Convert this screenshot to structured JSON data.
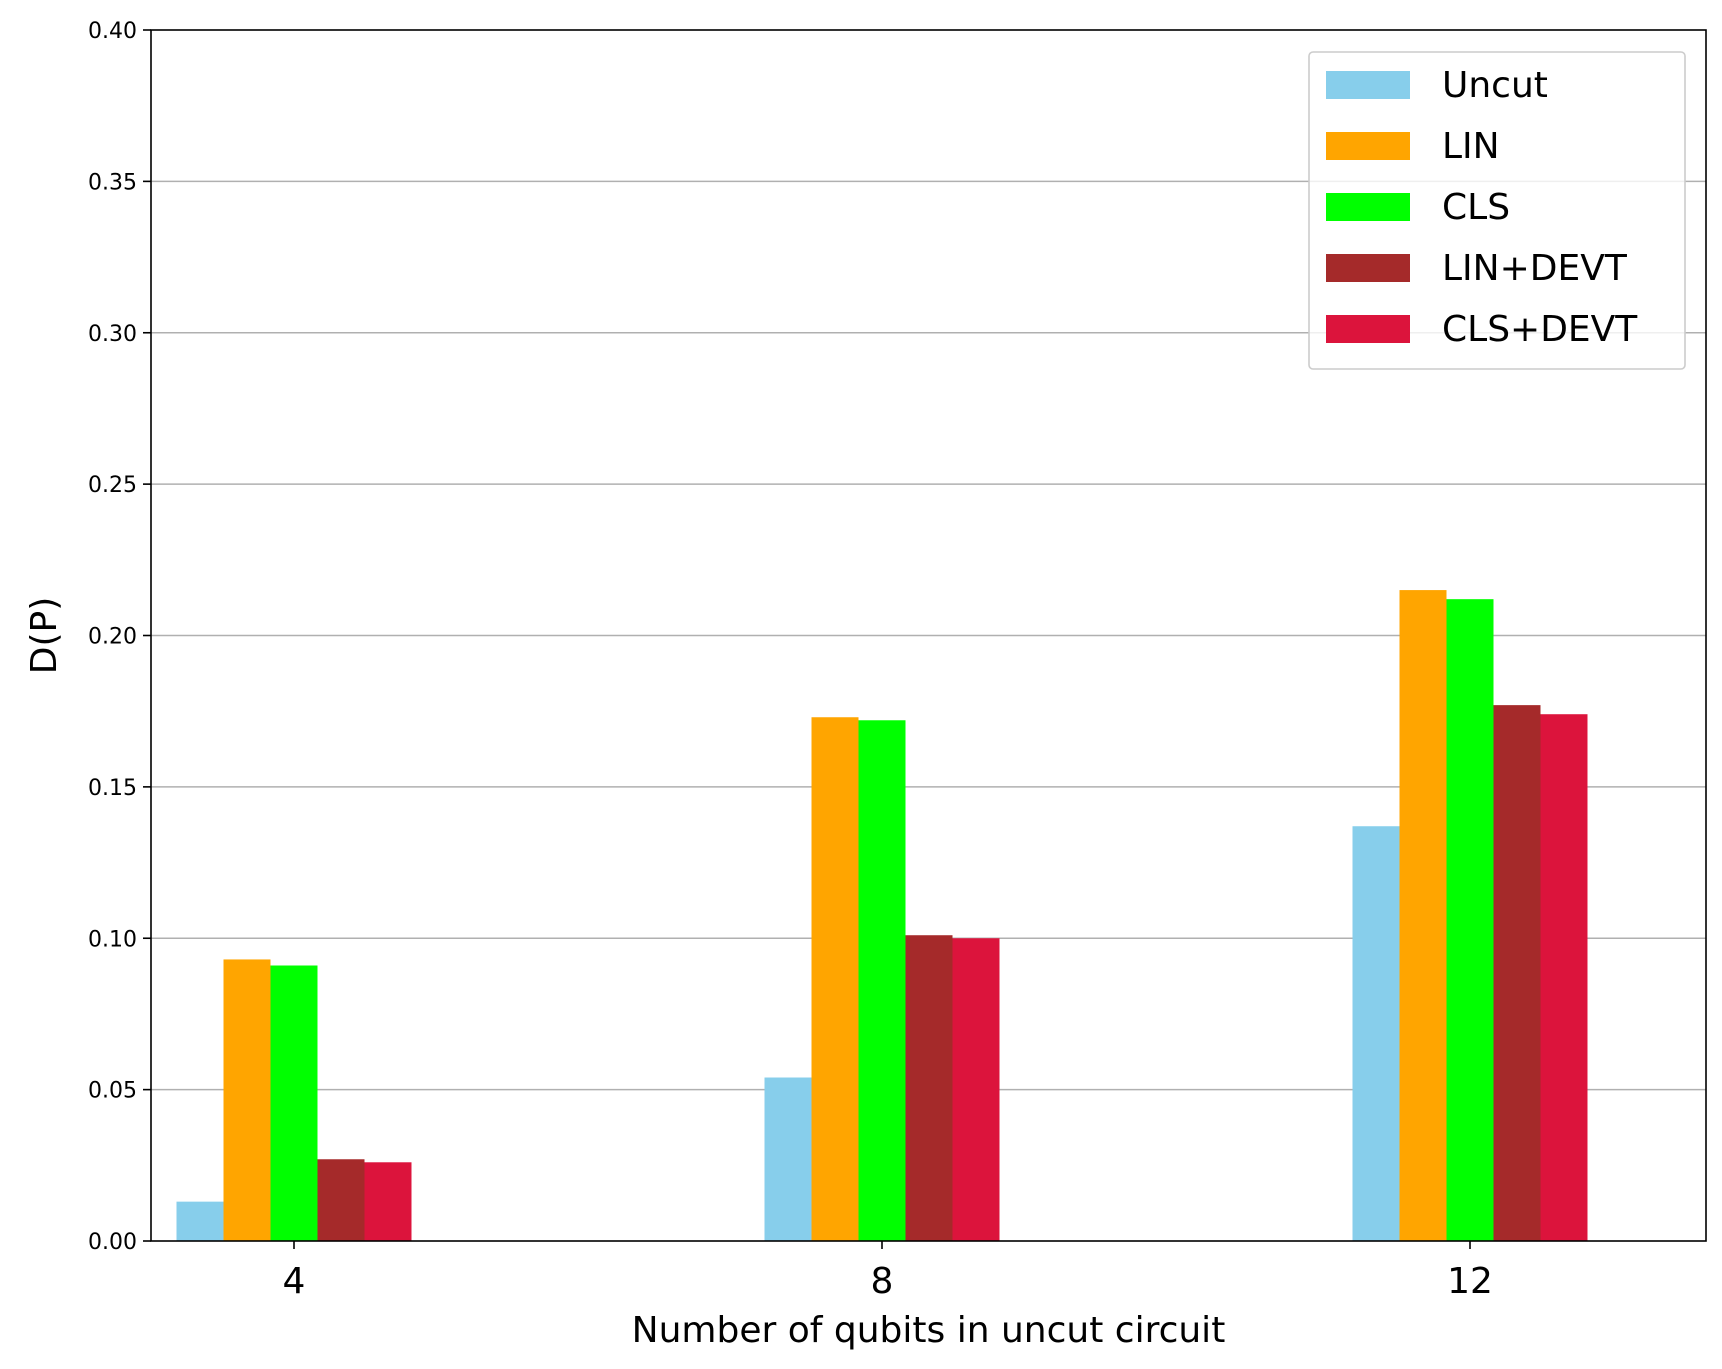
{
  "chart_data": {
    "type": "bar",
    "xlabel": "Number of qubits in uncut circuit",
    "ylabel": "D(P)",
    "categories": [
      "4",
      "8",
      "12"
    ],
    "ylim": [
      0,
      0.4
    ],
    "yticks": [
      "0.00",
      "0.05",
      "0.10",
      "0.15",
      "0.20",
      "0.25",
      "0.30",
      "0.35",
      "0.40"
    ],
    "grid": "horizontal",
    "legend_position": "top-right",
    "series": [
      {
        "name": "Uncut",
        "color": "#87CEEB",
        "values": [
          0.013,
          0.054,
          0.137
        ]
      },
      {
        "name": "LIN",
        "color": "#FFA500",
        "values": [
          0.093,
          0.173,
          0.215
        ]
      },
      {
        "name": "CLS",
        "color": "#00FF00",
        "values": [
          0.091,
          0.172,
          0.212
        ]
      },
      {
        "name": "LIN+DEVT",
        "color": "#A52A2A",
        "values": [
          0.027,
          0.101,
          0.177
        ]
      },
      {
        "name": "CLS+DEVT",
        "color": "#DC143C",
        "values": [
          0.026,
          0.1,
          0.174
        ]
      }
    ]
  }
}
